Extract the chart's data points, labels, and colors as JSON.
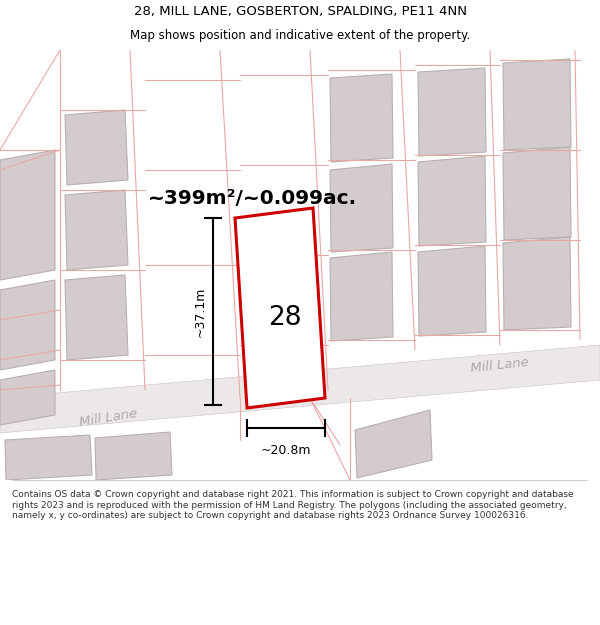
{
  "title_line1": "28, MILL LANE, GOSBERTON, SPALDING, PE11 4NN",
  "title_line2": "Map shows position and indicative extent of the property.",
  "area_label": "~399m²/~0.099ac.",
  "plot_number": "28",
  "dim_vertical": "~37.1m",
  "dim_horizontal": "~20.8m",
  "road_label_bl": "Mill Lane",
  "road_label_br": "Mill Lane",
  "footer_text": "Contains OS data © Crown copyright and database right 2021. This information is subject to Crown copyright and database rights 2023 and is reproduced with the permission of HM Land Registry. The polygons (including the associated geometry, namely x, y co-ordinates) are subject to Crown copyright and database rights 2023 Ordnance Survey 100026316.",
  "bg_color": "#f7f3f3",
  "highlight_color": "#cc0000",
  "road_fill": "#ede8e8",
  "road_edge": "#d4c8c8",
  "pink": "#e8a8a8",
  "gray_fill": "#d4cccc",
  "gray_edge": "#b8b0b0",
  "road_label_color": "#b0a8a8",
  "white": "#ffffff",
  "black": "#000000",
  "footer_sep_color": "#cccccc"
}
